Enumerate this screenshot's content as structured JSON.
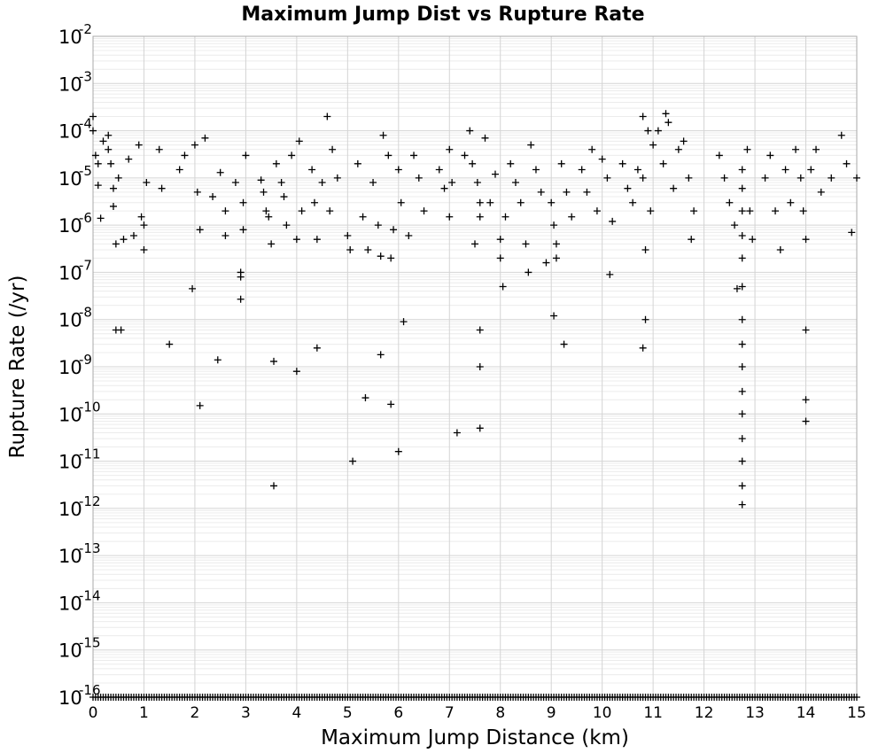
{
  "chart_data": {
    "type": "scatter",
    "title": "Maximum Jump Dist vs Rupture Rate",
    "xlabel": "Maximum Jump Distance (km)",
    "ylabel": "Rupture Rate (/yr)",
    "xlim": [
      0,
      15
    ],
    "ylim": [
      1e-16,
      0.01
    ],
    "yscale": "log",
    "grid": true,
    "marker": "+",
    "x_ticks": [
      "0",
      "1",
      "2",
      "3",
      "4",
      "5",
      "6",
      "7",
      "8",
      "9",
      "10",
      "11",
      "12",
      "13",
      "14",
      "15"
    ],
    "y_ticks": [
      {
        "base": "10",
        "exp": "-2"
      },
      {
        "base": "10",
        "exp": "-3"
      },
      {
        "base": "10",
        "exp": "-4"
      },
      {
        "base": "10",
        "exp": "-5"
      },
      {
        "base": "10",
        "exp": "-6"
      },
      {
        "base": "10",
        "exp": "-7"
      },
      {
        "base": "10",
        "exp": "-8"
      },
      {
        "base": "10",
        "exp": "-9"
      },
      {
        "base": "10",
        "exp": "-10"
      },
      {
        "base": "10",
        "exp": "-11"
      },
      {
        "base": "10",
        "exp": "-12"
      },
      {
        "base": "10",
        "exp": "-13"
      },
      {
        "base": "10",
        "exp": "-14"
      },
      {
        "base": "10",
        "exp": "-15"
      },
      {
        "base": "10",
        "exp": "-16"
      }
    ],
    "points": [
      [
        0,
        0.0002
      ],
      [
        0,
        0.0001
      ],
      [
        0.05,
        3e-05
      ],
      [
        0.1,
        2e-05
      ],
      [
        0.1,
        7e-06
      ],
      [
        0.15,
        1.4e-06
      ],
      [
        0.2,
        6e-05
      ],
      [
        0.3,
        4e-05
      ],
      [
        0.3,
        8e-05
      ],
      [
        0.35,
        2e-05
      ],
      [
        0.4,
        6e-06
      ],
      [
        0.4,
        2.5e-06
      ],
      [
        0.45,
        4e-07
      ],
      [
        0.45,
        6e-09
      ],
      [
        0.5,
        1e-05
      ],
      [
        0.55,
        6e-09
      ],
      [
        0.6,
        5e-07
      ],
      [
        0.7,
        2.5e-05
      ],
      [
        0.8,
        6e-07
      ],
      [
        0.9,
        5e-05
      ],
      [
        0.95,
        1.5e-06
      ],
      [
        1.0,
        1e-06
      ],
      [
        1.0,
        3e-07
      ],
      [
        1.05,
        8e-06
      ],
      [
        1.3,
        4e-05
      ],
      [
        1.35,
        6e-06
      ],
      [
        1.5,
        3e-09
      ],
      [
        1.7,
        1.5e-05
      ],
      [
        1.8,
        3e-05
      ],
      [
        1.95,
        4.5e-08
      ],
      [
        2.0,
        5e-05
      ],
      [
        2.05,
        5e-06
      ],
      [
        2.1,
        8e-07
      ],
      [
        2.1,
        1.5e-10
      ],
      [
        2.2,
        7e-05
      ],
      [
        2.35,
        4e-06
      ],
      [
        2.45,
        1.4e-09
      ],
      [
        2.5,
        1.3e-05
      ],
      [
        2.6,
        2e-06
      ],
      [
        2.6,
        6e-07
      ],
      [
        2.8,
        8e-06
      ],
      [
        2.9,
        1e-07
      ],
      [
        2.9,
        8e-08
      ],
      [
        2.9,
        2.7e-08
      ],
      [
        2.95,
        3e-06
      ],
      [
        2.95,
        8e-07
      ],
      [
        3.0,
        3e-05
      ],
      [
        3.3,
        9e-06
      ],
      [
        3.35,
        5e-06
      ],
      [
        3.4,
        2e-06
      ],
      [
        3.45,
        1.5e-06
      ],
      [
        3.5,
        4e-07
      ],
      [
        3.55,
        1.3e-09
      ],
      [
        3.55,
        3e-12
      ],
      [
        3.6,
        2e-05
      ],
      [
        3.7,
        8e-06
      ],
      [
        3.75,
        4e-06
      ],
      [
        3.8,
        1e-06
      ],
      [
        3.9,
        3e-05
      ],
      [
        4.0,
        5e-07
      ],
      [
        4.0,
        8e-10
      ],
      [
        4.05,
        6e-05
      ],
      [
        4.1,
        2e-06
      ],
      [
        4.3,
        1.5e-05
      ],
      [
        4.35,
        3e-06
      ],
      [
        4.4,
        5e-07
      ],
      [
        4.4,
        2.5e-09
      ],
      [
        4.5,
        8e-06
      ],
      [
        4.6,
        0.0002
      ],
      [
        4.65,
        2e-06
      ],
      [
        4.7,
        4e-05
      ],
      [
        4.8,
        1e-05
      ],
      [
        5.0,
        6e-07
      ],
      [
        5.05,
        3e-07
      ],
      [
        5.1,
        1e-11
      ],
      [
        5.2,
        2e-05
      ],
      [
        5.3,
        1.5e-06
      ],
      [
        5.35,
        2.2e-10
      ],
      [
        5.4,
        3e-07
      ],
      [
        5.5,
        8e-06
      ],
      [
        5.6,
        1e-06
      ],
      [
        5.65,
        2.2e-07
      ],
      [
        5.65,
        1.8e-09
      ],
      [
        5.7,
        8e-05
      ],
      [
        5.8,
        3e-05
      ],
      [
        5.85,
        2e-07
      ],
      [
        5.85,
        1.6e-10
      ],
      [
        5.9,
        8e-07
      ],
      [
        6.0,
        1.5e-05
      ],
      [
        6.0,
        1.6e-11
      ],
      [
        6.05,
        3e-06
      ],
      [
        6.1,
        9e-09
      ],
      [
        6.2,
        6e-07
      ],
      [
        6.3,
        3e-05
      ],
      [
        6.4,
        1e-05
      ],
      [
        6.5,
        2e-06
      ],
      [
        6.8,
        1.5e-05
      ],
      [
        6.9,
        6e-06
      ],
      [
        7.0,
        4e-05
      ],
      [
        7.0,
        1.5e-06
      ],
      [
        7.05,
        8e-06
      ],
      [
        7.15,
        4e-11
      ],
      [
        7.3,
        3e-05
      ],
      [
        7.4,
        0.0001
      ],
      [
        7.45,
        2e-05
      ],
      [
        7.5,
        4e-07
      ],
      [
        7.55,
        8e-06
      ],
      [
        7.6,
        3e-06
      ],
      [
        7.6,
        1.5e-06
      ],
      [
        7.6,
        6e-09
      ],
      [
        7.6,
        1e-09
      ],
      [
        7.6,
        5e-11
      ],
      [
        7.7,
        7e-05
      ],
      [
        7.8,
        3e-06
      ],
      [
        7.9,
        1.2e-05
      ],
      [
        8.0,
        5e-07
      ],
      [
        8.0,
        2e-07
      ],
      [
        8.05,
        5e-08
      ],
      [
        8.1,
        1.5e-06
      ],
      [
        8.2,
        2e-05
      ],
      [
        8.3,
        8e-06
      ],
      [
        8.4,
        3e-06
      ],
      [
        8.5,
        4e-07
      ],
      [
        8.55,
        1e-07
      ],
      [
        8.6,
        5e-05
      ],
      [
        8.7,
        1.5e-05
      ],
      [
        8.8,
        5e-06
      ],
      [
        8.9,
        1.6e-07
      ],
      [
        9.0,
        3e-06
      ],
      [
        9.05,
        1e-06
      ],
      [
        9.05,
        1.2e-08
      ],
      [
        9.1,
        4e-07
      ],
      [
        9.1,
        2e-07
      ],
      [
        9.2,
        2e-05
      ],
      [
        9.25,
        3e-09
      ],
      [
        9.3,
        5e-06
      ],
      [
        9.4,
        1.5e-06
      ],
      [
        9.6,
        1.5e-05
      ],
      [
        9.7,
        5e-06
      ],
      [
        9.8,
        4e-05
      ],
      [
        9.9,
        2e-06
      ],
      [
        10.0,
        2.5e-05
      ],
      [
        10.1,
        1e-05
      ],
      [
        10.2,
        1.2e-06
      ],
      [
        10.15,
        9e-08
      ],
      [
        10.4,
        2e-05
      ],
      [
        10.5,
        6e-06
      ],
      [
        10.6,
        3e-06
      ],
      [
        10.7,
        1.5e-05
      ],
      [
        10.8,
        0.0002
      ],
      [
        10.8,
        1e-05
      ],
      [
        10.85,
        3e-07
      ],
      [
        10.85,
        1e-08
      ],
      [
        10.8,
        2.5e-09
      ],
      [
        10.9,
        0.0001
      ],
      [
        10.95,
        2e-06
      ],
      [
        11.0,
        5e-05
      ],
      [
        11.1,
        0.0001
      ],
      [
        11.2,
        2e-05
      ],
      [
        11.25,
        0.00023
      ],
      [
        11.3,
        0.00015
      ],
      [
        11.4,
        6e-06
      ],
      [
        11.5,
        4e-05
      ],
      [
        11.6,
        6e-05
      ],
      [
        11.7,
        1e-05
      ],
      [
        11.75,
        5e-07
      ],
      [
        11.8,
        2e-06
      ],
      [
        12.3,
        3e-05
      ],
      [
        12.4,
        1e-05
      ],
      [
        12.5,
        3e-06
      ],
      [
        12.6,
        1e-06
      ],
      [
        12.65,
        4.5e-08
      ],
      [
        12.75,
        1.5e-05
      ],
      [
        12.75,
        6e-06
      ],
      [
        12.75,
        2e-06
      ],
      [
        12.75,
        6e-07
      ],
      [
        12.75,
        2e-07
      ],
      [
        12.75,
        5e-08
      ],
      [
        12.75,
        1e-08
      ],
      [
        12.75,
        3e-09
      ],
      [
        12.75,
        1e-09
      ],
      [
        12.75,
        3e-10
      ],
      [
        12.75,
        1e-10
      ],
      [
        12.75,
        3e-11
      ],
      [
        12.75,
        1e-11
      ],
      [
        12.75,
        3e-12
      ],
      [
        12.75,
        1.2e-12
      ],
      [
        12.85,
        4e-05
      ],
      [
        12.9,
        2e-06
      ],
      [
        12.95,
        5e-07
      ],
      [
        13.2,
        1e-05
      ],
      [
        13.3,
        3e-05
      ],
      [
        13.4,
        2e-06
      ],
      [
        13.5,
        3e-07
      ],
      [
        13.6,
        1.5e-05
      ],
      [
        13.7,
        3e-06
      ],
      [
        13.8,
        4e-05
      ],
      [
        13.9,
        1e-05
      ],
      [
        13.95,
        2e-06
      ],
      [
        14.0,
        5e-07
      ],
      [
        14.0,
        6e-09
      ],
      [
        14.0,
        2e-10
      ],
      [
        14.0,
        7e-11
      ],
      [
        14.1,
        1.5e-05
      ],
      [
        14.2,
        4e-05
      ],
      [
        14.3,
        5e-06
      ],
      [
        14.5,
        1e-05
      ],
      [
        14.7,
        8e-05
      ],
      [
        14.8,
        2e-05
      ],
      [
        14.9,
        7e-07
      ],
      [
        15.0,
        1e-05
      ]
    ],
    "floor_band": {
      "y": 1e-16,
      "x_range": [
        0,
        15
      ],
      "note": "dense row of points at the 10^-16 floor across the full x range"
    }
  }
}
